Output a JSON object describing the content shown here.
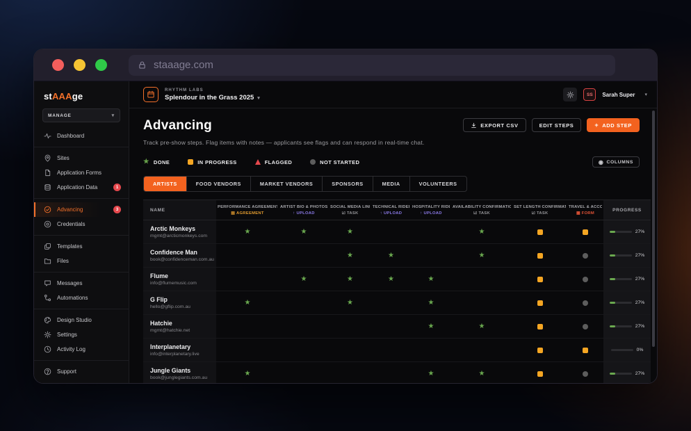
{
  "colors": {
    "accent": "#f3621f",
    "logo_accent": "#f3702a",
    "done": "#6aa84f",
    "in_progress": "#f5a623",
    "flagged": "#e5484d",
    "not_started": "#5d5d5d",
    "badge": "#e5484d",
    "type_agreement": "#e09a2f",
    "type_upload": "#8b7ae8",
    "type_task": "#96969a",
    "type_form": "#e25336"
  },
  "glyphs": {
    "done_star": "★",
    "chevron_down": "▾",
    "plus": "+",
    "eye": "◉"
  },
  "browser": {
    "url": "staaage.com"
  },
  "logo": {
    "pre": "st",
    "mid": "AAA",
    "post": "ge"
  },
  "sidebar": {
    "manage_label": "MANAGE",
    "items": [
      {
        "label": "Dashboard",
        "icon": "pulse-icon"
      },
      {
        "label": "Sites",
        "icon": "map-pin-icon"
      },
      {
        "label": "Application Forms",
        "icon": "file-icon"
      },
      {
        "label": "Application Data",
        "icon": "stack-icon",
        "badge": "1"
      },
      {
        "label": "Advancing",
        "icon": "clock-check-icon",
        "badge": "3",
        "active": true
      },
      {
        "label": "Credentials",
        "icon": "badge-icon"
      },
      {
        "label": "Templates",
        "icon": "copy-icon"
      },
      {
        "label": "Files",
        "icon": "folder-icon"
      },
      {
        "label": "Messages",
        "icon": "chat-icon"
      },
      {
        "label": "Automations",
        "icon": "workflow-icon"
      },
      {
        "label": "Design Studio",
        "icon": "palette-icon"
      },
      {
        "label": "Settings",
        "icon": "gear-icon"
      },
      {
        "label": "Activity Log",
        "icon": "history-icon"
      },
      {
        "label": "Support",
        "icon": "help-icon"
      }
    ]
  },
  "topbar": {
    "org": "RHYTHM LABS",
    "event": "Splendour in the Grass 2025",
    "user": {
      "name": "Sarah Super",
      "initials": "SS"
    }
  },
  "page": {
    "title": "Advancing",
    "subtitle": "Track pre-show steps. Flag items with notes — applicants see flags and can respond in real-time chat.",
    "actions": {
      "export_csv": "EXPORT CSV",
      "edit_steps": "EDIT STEPS",
      "add_step": "ADD STEP"
    },
    "columns_button": "COLUMNS",
    "legend": [
      {
        "label": "DONE",
        "icon": "star-icon",
        "status": "done"
      },
      {
        "label": "IN PROGRESS",
        "icon": "square-icon",
        "status": "in_progress"
      },
      {
        "label": "FLAGGED",
        "icon": "triangle-icon",
        "status": "flagged"
      },
      {
        "label": "NOT STARTED",
        "icon": "circle-icon",
        "status": "not_started"
      }
    ],
    "tabs": [
      {
        "label": "ARTISTS",
        "active": true
      },
      {
        "label": "FOOD VENDORS"
      },
      {
        "label": "MARKET VENDORS"
      },
      {
        "label": "SPONSORS"
      },
      {
        "label": "MEDIA"
      },
      {
        "label": "VOLUNTEERS"
      }
    ]
  },
  "table": {
    "columns": [
      {
        "label": "NAME"
      },
      {
        "label": "PERFORMANCE AGREEMENT / MOU",
        "type": "AGREEMENT",
        "type_icon": "▤"
      },
      {
        "label": "ARTIST BIO & PHOTOS",
        "type": "UPLOAD",
        "type_icon": "↑"
      },
      {
        "label": "SOCIAL MEDIA LINKS",
        "type": "TASK",
        "type_icon": "☑"
      },
      {
        "label": "TECHNICAL RIDER",
        "type": "UPLOAD",
        "type_icon": "↑"
      },
      {
        "label": "HOSPITALITY RIDER",
        "type": "UPLOAD",
        "type_icon": "↑"
      },
      {
        "label": "AVAILABILITY CONFIRMATION",
        "type": "TASK",
        "type_icon": "☑"
      },
      {
        "label": "SET LENGTH CONFIRMATION",
        "type": "TASK",
        "type_icon": "☑"
      },
      {
        "label": "TRAVEL & ACCOM",
        "type": "FORM",
        "type_icon": "▦"
      },
      {
        "label": "PROGRESS"
      }
    ],
    "rows": [
      {
        "name": "Arctic Monkeys",
        "email": "mgmt@arcticmonkeys.com",
        "steps": [
          "done",
          "done",
          "done",
          null,
          null,
          "done",
          "in_progress",
          "in_progress"
        ],
        "progress": "27%",
        "progress_value": 27
      },
      {
        "name": "Confidence Man",
        "email": "book@confidenceman.com.au",
        "steps": [
          null,
          null,
          "done",
          "done",
          null,
          "done",
          "in_progress",
          "not_started"
        ],
        "progress": "27%",
        "progress_value": 27
      },
      {
        "name": "Flume",
        "email": "info@flumemusic.com",
        "steps": [
          null,
          "done",
          "done",
          "done",
          "done",
          null,
          "in_progress",
          "not_started"
        ],
        "progress": "27%",
        "progress_value": 27
      },
      {
        "name": "G Flip",
        "email": "hello@gflip.com.au",
        "steps": [
          "done",
          null,
          "done",
          null,
          "done",
          null,
          "in_progress",
          "not_started"
        ],
        "progress": "27%",
        "progress_value": 27
      },
      {
        "name": "Hatchie",
        "email": "mgmt@hatchie.net",
        "steps": [
          null,
          null,
          null,
          null,
          "done",
          "done",
          "in_progress",
          "not_started"
        ],
        "progress": "27%",
        "progress_value": 27
      },
      {
        "name": "Interplanetary",
        "email": "info@interplanetary.live",
        "steps": [
          null,
          null,
          null,
          null,
          null,
          null,
          "in_progress",
          "in_progress"
        ],
        "progress": "0%",
        "progress_value": 0
      },
      {
        "name": "Jungle Giants",
        "email": "book@junglegiants.com.au",
        "steps": [
          "done",
          null,
          null,
          null,
          "done",
          "done",
          "in_progress",
          "not_started"
        ],
        "progress": "27%",
        "progress_value": 27
      }
    ]
  }
}
